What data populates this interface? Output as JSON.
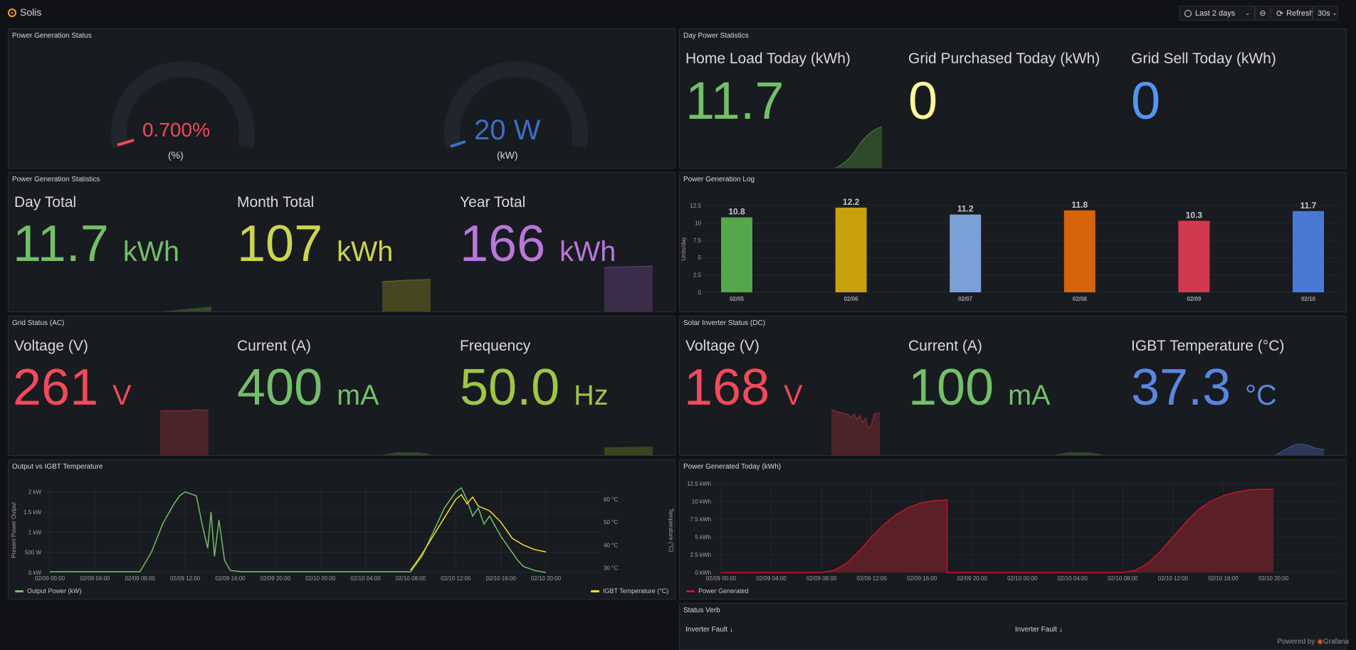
{
  "app": {
    "title": "Solis",
    "time_range": "Last 2 days",
    "refresh_label": "Refresh",
    "refresh_interval": "30s",
    "powered_by": "Powered by",
    "brand": "Grafana"
  },
  "colors": {
    "green": "#73bf69",
    "yellow": "#fade2a",
    "blue": "#5794f2",
    "purple": "#b877d9",
    "red": "#f2495c",
    "olive": "#cdd44f",
    "lime": "#96d98d"
  },
  "panels": {
    "gen_status": {
      "title": "Power Generation Status",
      "gauge1_value": "0.700%",
      "gauge1_unit": "(%)",
      "gauge2_value": "20 W",
      "gauge2_unit": "(kW)"
    },
    "day_stats": {
      "title": "Day Power Statistics",
      "items": [
        {
          "label": "Home Load Today (kWh)",
          "value": "11.7"
        },
        {
          "label": "Grid Purchased Today (kWh)",
          "value": "0"
        },
        {
          "label": "Grid Sell Today (kWh)",
          "value": "0"
        }
      ]
    },
    "gen_stats": {
      "title": "Power Generation Statistics",
      "items": [
        {
          "label": "Day Total",
          "value": "11.7",
          "unit": "kWh"
        },
        {
          "label": "Month Total",
          "value": "107",
          "unit": "kWh"
        },
        {
          "label": "Year Total",
          "value": "166",
          "unit": "kWh"
        }
      ]
    },
    "gen_log": {
      "title": "Power Generation Log",
      "ylabel": "Units/day"
    },
    "grid_ac": {
      "title": "Grid Status (AC)",
      "items": [
        {
          "label": "Voltage (V)",
          "value": "261",
          "unit": "V"
        },
        {
          "label": "Current (A)",
          "value": "400",
          "unit": "mA"
        },
        {
          "label": "Frequency",
          "value": "50.0",
          "unit": "Hz"
        }
      ]
    },
    "inverter_dc": {
      "title": "Solar Inverter Status (DC)",
      "items": [
        {
          "label": "Voltage (V)",
          "value": "168",
          "unit": "V"
        },
        {
          "label": "Current (A)",
          "value": "100",
          "unit": "mA"
        },
        {
          "label": "IGBT Temperature (°C)",
          "value": "37.3",
          "unit": "°C"
        }
      ]
    },
    "output_temp": {
      "title": "Output vs IGBT Temperature",
      "ylabel_left": "Present Power Output",
      "ylabel_right": "Temperature (°C)",
      "legend_left": "Output Power (kW)",
      "legend_right": "IGBT Temperature (°C)"
    },
    "gen_today": {
      "title": "Power Generated Today (kWh)",
      "legend": "Power Generated"
    },
    "status_verb": {
      "title": "Status Verb",
      "col1": "Inverter Fault",
      "col2": "Inverter Fault"
    }
  },
  "chart_data": [
    {
      "type": "bar",
      "title": "Power Generation Log",
      "ylabel": "Units/day",
      "categories": [
        "02/05",
        "02/06",
        "02/07",
        "02/08",
        "02/09",
        "02/10"
      ],
      "values": [
        10.8,
        12.2,
        11.2,
        11.8,
        10.3,
        11.7
      ],
      "colors": [
        "#56a64b",
        "#c8a10e",
        "#7aa0d8",
        "#d5640a",
        "#d2394f",
        "#4a79d3"
      ],
      "yticks": [
        "0",
        "2.5",
        "5",
        "7.5",
        "10",
        "12.5"
      ],
      "ylim": [
        0,
        12.5
      ]
    },
    {
      "type": "line",
      "title": "Output vs IGBT Temperature",
      "x_ticks": [
        "02/09 00:00",
        "02/09 04:00",
        "02/09 08:00",
        "02/09 12:00",
        "02/09 16:00",
        "02/09 20:00",
        "02/10 00:00",
        "02/10 04:00",
        "02/10 08:00",
        "02/10 12:00",
        "02/10 16:00",
        "02/10 20:00"
      ],
      "y_left_ticks": [
        "0 kW",
        "500 W",
        "1 kW",
        "1.5 kW",
        "2 kW"
      ],
      "y_right_ticks": [
        "30 °C",
        "40 °C",
        "50 °C",
        "60 °C"
      ],
      "series": [
        {
          "name": "Output Power (kW)",
          "axis": "left",
          "x_hours": [
            0,
            8,
            9,
            10,
            11,
            11.5,
            12,
            13,
            13.5,
            14,
            14.3,
            14.6,
            15,
            15.5,
            16,
            17,
            32,
            33,
            34,
            35,
            36,
            36.5,
            37,
            37.5,
            38,
            38.5,
            39,
            40,
            41,
            41.5,
            42,
            43,
            44
          ],
          "values": [
            0.02,
            0.02,
            0.5,
            1.2,
            1.7,
            1.9,
            2.0,
            1.9,
            1.2,
            0.6,
            1.5,
            0.4,
            1.3,
            0.3,
            0.05,
            0.02,
            0.02,
            0.4,
            1.0,
            1.6,
            2.0,
            2.1,
            1.8,
            1.4,
            1.6,
            1.2,
            1.4,
            0.9,
            0.5,
            0.3,
            0.15,
            0.05,
            0.0
          ]
        },
        {
          "name": "IGBT Temperature (°C)",
          "axis": "right",
          "x_hours": [
            32,
            33,
            34,
            35,
            36,
            36.5,
            37,
            37.5,
            38,
            39,
            40,
            41,
            42,
            43,
            44
          ],
          "values": [
            29,
            36,
            44,
            52,
            60,
            62,
            58,
            61,
            57,
            55,
            50,
            43,
            40,
            38,
            37
          ]
        }
      ]
    },
    {
      "type": "area",
      "title": "Power Generated Today (kWh)",
      "x_ticks": [
        "02/09 00:00",
        "02/09 04:00",
        "02/09 08:00",
        "02/09 12:00",
        "02/09 16:00",
        "02/09 20:00",
        "02/10 00:00",
        "02/10 04:00",
        "02/10 08:00",
        "02/10 12:00",
        "02/10 16:00",
        "02/10 20:00"
      ],
      "y_ticks": [
        "0 kWh",
        "2.5 kWh",
        "5 kWh",
        "7.5 kWh",
        "10 kWh",
        "12.5 kWh"
      ],
      "series": [
        {
          "name": "Power Generated",
          "x_hours": [
            0,
            8,
            9,
            10,
            11,
            12,
            13,
            14,
            15,
            16,
            17,
            18,
            18.01,
            32,
            33,
            34,
            35,
            36,
            37,
            38,
            39,
            40,
            41,
            42,
            43,
            44
          ],
          "values": [
            0,
            0,
            0.3,
            1.3,
            3,
            5,
            6.8,
            8.2,
            9.2,
            9.8,
            10.1,
            10.2,
            0,
            0,
            0.3,
            1.3,
            3,
            5,
            7,
            8.8,
            10,
            10.8,
            11.3,
            11.6,
            11.7,
            11.7
          ]
        }
      ]
    }
  ]
}
